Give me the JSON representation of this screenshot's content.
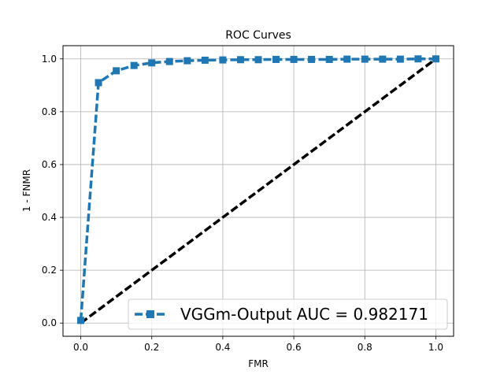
{
  "chart_data": {
    "type": "line",
    "title": "ROC Curves",
    "xlabel": "FMR",
    "ylabel": "1 - FNMR",
    "xlim": [
      -0.05,
      1.05
    ],
    "ylim": [
      -0.05,
      1.05
    ],
    "xticks": [
      "0.0",
      "0.2",
      "0.4",
      "0.6",
      "0.8",
      "1.0"
    ],
    "yticks": [
      "0.0",
      "0.2",
      "0.4",
      "0.6",
      "0.8",
      "1.0"
    ],
    "grid": true,
    "legend_position": "lower-right",
    "series": [
      {
        "name": "VGGm-Output AUC = 0.982171",
        "color": "#1f77b4",
        "linestyle": "dashed",
        "marker": "square",
        "x": [
          0.0,
          0.05,
          0.1,
          0.15,
          0.2,
          0.25,
          0.3,
          0.35,
          0.4,
          0.45,
          0.5,
          0.55,
          0.6,
          0.65,
          0.7,
          0.75,
          0.8,
          0.85,
          0.9,
          0.95,
          1.0
        ],
        "y": [
          0.01,
          0.91,
          0.955,
          0.975,
          0.985,
          0.99,
          0.993,
          0.995,
          0.996,
          0.997,
          0.997,
          0.998,
          0.998,
          0.998,
          0.998,
          0.999,
          0.999,
          0.999,
          0.999,
          1.0,
          1.0
        ]
      }
    ],
    "reference_line": {
      "color": "#000000",
      "linestyle": "dashed",
      "x": [
        0.0,
        1.0
      ],
      "y": [
        0.0,
        1.0
      ]
    }
  }
}
